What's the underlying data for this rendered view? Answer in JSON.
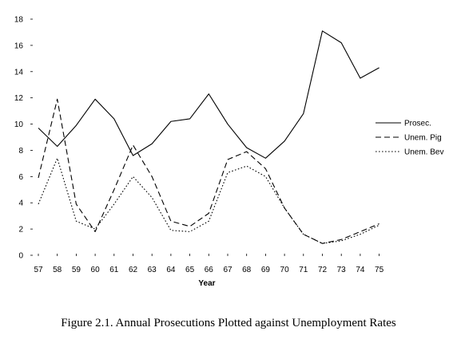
{
  "caption": "Figure 2.1.  Annual Prosecutions Plotted against Unemployment Rates",
  "chart_data": {
    "type": "line",
    "xlabel": "Year",
    "ylabel": "",
    "categories": [
      "57",
      "58",
      "59",
      "60",
      "61",
      "62",
      "63",
      "64",
      "65",
      "66",
      "67",
      "68",
      "69",
      "70",
      "71",
      "72",
      "73",
      "74",
      "75"
    ],
    "ylim": [
      0,
      18
    ],
    "yticks": [
      0,
      2,
      4,
      6,
      8,
      10,
      12,
      14,
      16,
      18
    ],
    "grid": false,
    "legend_position": "right",
    "series": [
      {
        "name": "Prosec.",
        "dash": "solid",
        "values": [
          9.7,
          8.3,
          9.9,
          11.9,
          10.4,
          7.6,
          8.5,
          10.2,
          10.4,
          12.3,
          10.0,
          8.2,
          7.4,
          8.7,
          10.8,
          17.1,
          16.2,
          13.5,
          14.3
        ]
      },
      {
        "name": "Unem. Pig",
        "dash": "dashed",
        "values": [
          5.9,
          11.9,
          3.9,
          1.8,
          5.0,
          8.4,
          6.0,
          2.6,
          2.2,
          3.2,
          7.3,
          7.9,
          6.6,
          3.6,
          1.6,
          0.9,
          1.2,
          1.8,
          2.4
        ]
      },
      {
        "name": "Unem. Bev",
        "dash": "dotted",
        "values": [
          3.9,
          7.4,
          2.6,
          2.0,
          3.9,
          6.0,
          4.4,
          1.9,
          1.8,
          2.6,
          6.3,
          6.8,
          6.0,
          3.6,
          1.6,
          0.9,
          1.1,
          1.6,
          2.3
        ]
      }
    ]
  }
}
